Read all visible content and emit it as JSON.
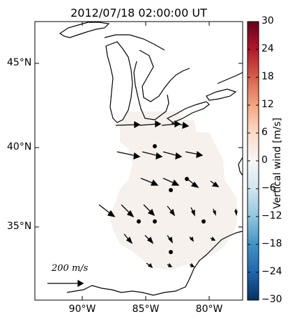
{
  "title": "2012/07/18 02:00:00 UT",
  "axes": {
    "lat_labels": [
      "45°N",
      "40°N",
      "35°N"
    ],
    "lon_labels": [
      "90°W",
      "85°W",
      "80°W"
    ]
  },
  "colorbar": {
    "label": "Vertical wind [m/s]",
    "ticks": [
      "30",
      "24",
      "18",
      "12",
      "6",
      "0",
      "−6",
      "−12",
      "−18",
      "−24",
      "−30"
    ],
    "colormap": "RdBu_r",
    "colors": {
      "max": "#67001f",
      "mid": "#f7f7f7",
      "min": "#053061"
    }
  },
  "scale_arrow": {
    "label": "200 m/s"
  },
  "colors": {
    "field": "#f6f1ed",
    "coast": "#000000",
    "arrow": "#000000"
  }
}
